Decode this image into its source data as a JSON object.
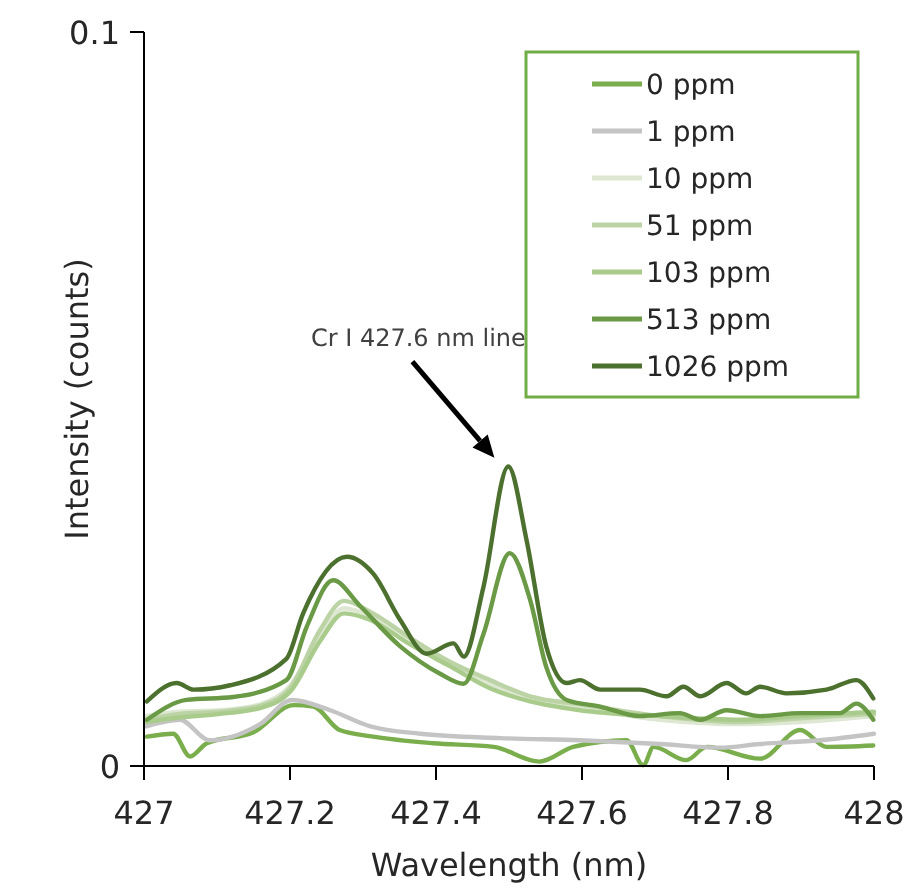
{
  "chart_data": {
    "type": "line",
    "xlabel": "Wavelength (nm)",
    "ylabel": "Intensity (counts)",
    "xlim": [
      427,
      428
    ],
    "xticks": [
      427,
      427.2,
      427.4,
      427.6,
      427.8,
      428
    ],
    "ylim": [
      0,
      0.1
    ],
    "yticks": [
      0,
      0.1
    ],
    "grid": false,
    "legend": "top right",
    "marker": "none",
    "line_style": "solid",
    "annotations": [
      "Cr I 427.6 nm line"
    ],
    "series": [
      {
        "name": "0 ppm",
        "color": "#7aae4c",
        "x": [
          427.004,
          427.04,
          427.063,
          427.086,
          427.15,
          427.205,
          427.232,
          427.268,
          427.314,
          427.396,
          427.479,
          427.542,
          427.588,
          427.661,
          427.684,
          427.698,
          427.743,
          427.771,
          427.844,
          427.899,
          427.935,
          427.999
        ],
        "values": [
          0.004,
          0.0044,
          0.0013,
          0.0031,
          0.0046,
          0.0083,
          0.0081,
          0.0049,
          0.004,
          0.0031,
          0.0026,
          0.0006,
          0.0026,
          0.0035,
          0.0001,
          0.0026,
          0.0008,
          0.0026,
          0.001,
          0.0049,
          0.0026,
          0.0028
        ]
      },
      {
        "name": "1 ppm",
        "color": "#c4c4c4",
        "x": [
          427.003,
          427.049,
          427.09,
          427.159,
          427.203,
          427.255,
          427.31,
          427.378,
          427.488,
          427.597,
          427.707,
          427.789,
          427.844,
          427.926,
          428
        ],
        "values": [
          0.0054,
          0.0063,
          0.0035,
          0.0057,
          0.009,
          0.0076,
          0.0054,
          0.0044,
          0.0038,
          0.0035,
          0.003,
          0.0025,
          0.003,
          0.0035,
          0.0044
        ]
      },
      {
        "name": "10 ppm",
        "color": "#dde7d2",
        "x": [
          427.003,
          427.049,
          427.104,
          427.159,
          427.2,
          427.241,
          427.274,
          427.31,
          427.364,
          427.419,
          427.474,
          427.529,
          427.597,
          427.707,
          427.816,
          427.899,
          428
        ],
        "values": [
          0.0068,
          0.0074,
          0.0076,
          0.0084,
          0.0109,
          0.0177,
          0.0215,
          0.0204,
          0.0172,
          0.0139,
          0.0112,
          0.009,
          0.0079,
          0.0063,
          0.0057,
          0.006,
          0.0068
        ]
      },
      {
        "name": "51 ppm",
        "color": "#bcd3a6",
        "x": [
          427.003,
          427.049,
          427.104,
          427.159,
          427.2,
          427.241,
          427.274,
          427.31,
          427.364,
          427.419,
          427.474,
          427.529,
          427.597,
          427.707,
          427.816,
          427.899,
          428
        ],
        "values": [
          0.0063,
          0.0071,
          0.0074,
          0.0082,
          0.0106,
          0.0185,
          0.0225,
          0.021,
          0.0175,
          0.0142,
          0.0117,
          0.0095,
          0.0084,
          0.0068,
          0.006,
          0.0065,
          0.0071
        ]
      },
      {
        "name": "103 ppm",
        "color": "#a9cc8c",
        "x": [
          427.003,
          427.049,
          427.104,
          427.159,
          427.2,
          427.241,
          427.274,
          427.31,
          427.364,
          427.419,
          427.474,
          427.529,
          427.597,
          427.707,
          427.816,
          427.899,
          428
        ],
        "values": [
          0.006,
          0.0066,
          0.0071,
          0.0079,
          0.0101,
          0.017,
          0.0208,
          0.0199,
          0.0166,
          0.0136,
          0.0106,
          0.0088,
          0.0076,
          0.0068,
          0.0063,
          0.0068,
          0.0074
        ]
      },
      {
        "name": "513 ppm",
        "color": "#6a9a45",
        "x": [
          427.004,
          427.058,
          427.122,
          427.195,
          427.223,
          427.259,
          427.296,
          427.351,
          427.405,
          427.438,
          427.465,
          427.501,
          427.529,
          427.551,
          427.579,
          427.625,
          427.679,
          427.734,
          427.762,
          427.798,
          427.844,
          427.899,
          427.953,
          427.976,
          427.999
        ],
        "values": [
          0.0063,
          0.009,
          0.0094,
          0.0117,
          0.019,
          0.0253,
          0.0218,
          0.0163,
          0.0126,
          0.0112,
          0.018,
          0.029,
          0.0226,
          0.0135,
          0.009,
          0.0081,
          0.0068,
          0.0072,
          0.0063,
          0.0076,
          0.0068,
          0.0072,
          0.0072,
          0.0085,
          0.0063
        ]
      },
      {
        "name": "1026 ppm",
        "color": "#4c702e",
        "x": [
          427.004,
          427.045,
          427.068,
          427.118,
          427.195,
          427.218,
          427.278,
          427.314,
          427.351,
          427.387,
          427.424,
          427.438,
          427.465,
          427.499,
          427.524,
          427.551,
          427.579,
          427.597,
          427.625,
          427.679,
          427.716,
          427.739,
          427.762,
          427.798,
          427.825,
          427.844,
          427.88,
          427.935,
          427.976,
          427.999
        ],
        "values": [
          0.0088,
          0.0113,
          0.0104,
          0.011,
          0.0146,
          0.0208,
          0.0285,
          0.0262,
          0.0199,
          0.0153,
          0.0167,
          0.0149,
          0.0244,
          0.0408,
          0.0308,
          0.0163,
          0.0113,
          0.0117,
          0.0104,
          0.0104,
          0.0095,
          0.0108,
          0.0095,
          0.0113,
          0.0099,
          0.0108,
          0.0099,
          0.0104,
          0.0117,
          0.0092
        ]
      }
    ]
  }
}
